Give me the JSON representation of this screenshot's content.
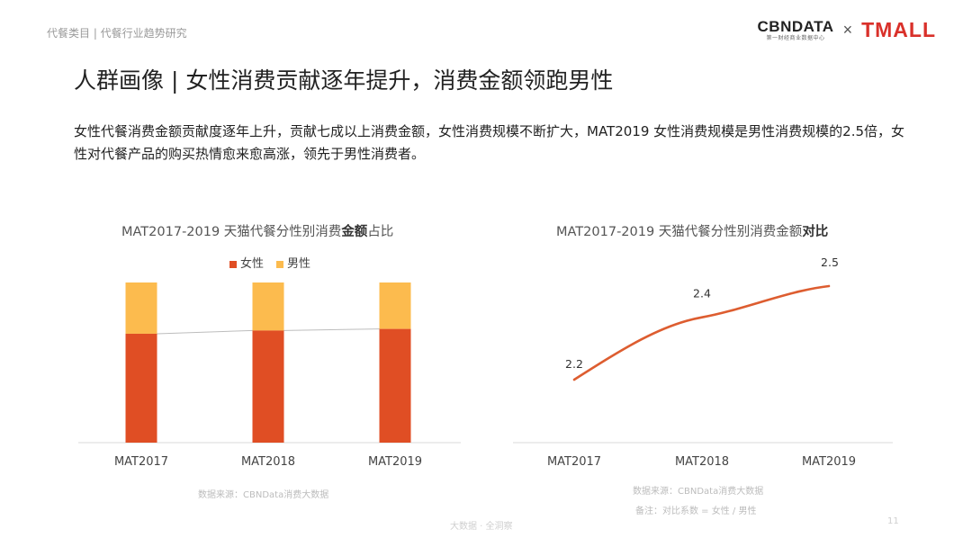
{
  "header": {
    "breadcrumb": "代餐类目 | 代餐行业趋势研究",
    "logo_cbn_main": "CBNDATA",
    "logo_cbn_sub": "第一财经商业数据中心",
    "logo_times": "×",
    "logo_tmall": "TMALL"
  },
  "title": "人群画像 | 女性消费贡献逐年提升，消费金额领跑男性",
  "description": "女性代餐消费金额贡献度逐年上升，贡献七成以上消费金额，女性消费规模不断扩大，MAT2019 女性消费规模是男性消费规模的2.5倍，女性对代餐产品的购买热情愈来愈高涨，领先于男性消费者。",
  "colors": {
    "female": "#e04e24",
    "male": "#fcbb4e",
    "line": "#dd5d30"
  },
  "chart_data": [
    {
      "type": "bar",
      "stacked": true,
      "normalized": true,
      "title_prefix": "MAT2017-2019 天猫代餐分性别消费",
      "title_bold": "金额",
      "title_suffix": "占比",
      "categories": [
        "MAT2017",
        "MAT2018",
        "MAT2019"
      ],
      "series": [
        {
          "name": "女性",
          "values": [
            0.68,
            0.7,
            0.71
          ]
        },
        {
          "name": "男性",
          "values": [
            0.32,
            0.3,
            0.29
          ]
        }
      ],
      "legend_position": "top",
      "ylim": [
        0,
        1
      ],
      "source": "数据来源：CBNData消费大数据"
    },
    {
      "type": "line",
      "title_prefix": "MAT2017-2019 天猫代餐分性别消费金额",
      "title_bold": "对比",
      "categories": [
        "MAT2017",
        "MAT2018",
        "MAT2019"
      ],
      "values": [
        2.2,
        2.4,
        2.5
      ],
      "data_labels": [
        "2.2",
        "2.4",
        "2.5"
      ],
      "source": "数据来源：CBNData消费大数据",
      "note": "备注：对比系数 = 女性 / 男性"
    }
  ],
  "footer": {
    "text": "大数据 · 全洞察",
    "page": "11"
  }
}
